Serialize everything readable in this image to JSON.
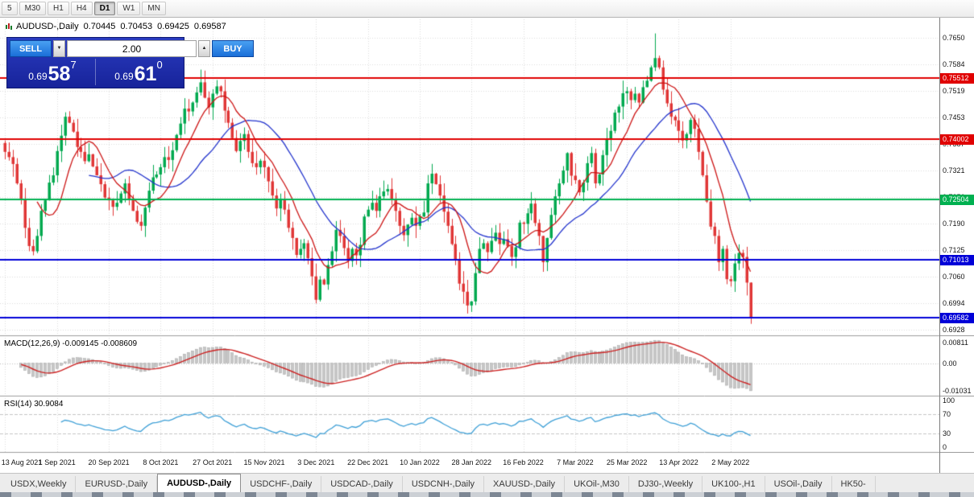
{
  "toolbar": {
    "timeframes": [
      {
        "label": "5",
        "active": false
      },
      {
        "label": "M30",
        "active": false
      },
      {
        "label": "H1",
        "active": false
      },
      {
        "label": "H4",
        "active": false
      },
      {
        "label": "D1",
        "active": true
      },
      {
        "label": "W1",
        "active": false
      },
      {
        "label": "MN",
        "active": false
      }
    ]
  },
  "chart_header": {
    "symbol": "AUDUSD-,Daily",
    "open": "0.70445",
    "high": "0.70453",
    "low": "0.69425",
    "close": "0.69587"
  },
  "trade_panel": {
    "sell_label": "SELL",
    "buy_label": "BUY",
    "volume": "2.00",
    "spin_down": "▼",
    "spin_up": "▲",
    "sell_price_prefix": "0.69",
    "sell_price_big": "58",
    "sell_price_sup": "7",
    "buy_price_prefix": "0.69",
    "buy_price_big": "61",
    "buy_price_sup": "0"
  },
  "indicators": {
    "macd": {
      "label": "MACD(12,26,9) -0.009145 -0.008609",
      "axis_labels": [
        "0.00811",
        "0.00",
        "-0.01031"
      ]
    },
    "rsi": {
      "label": "RSI(14) 30.9084",
      "axis_labels": [
        "100",
        "70",
        "30",
        "0"
      ],
      "axis_values": [
        100,
        70,
        30,
        0
      ]
    }
  },
  "tabs": [
    {
      "label": "USDX,Weekly",
      "active": false
    },
    {
      "label": "EURUSD-,Daily",
      "active": false
    },
    {
      "label": "AUDUSD-,Daily",
      "active": true
    },
    {
      "label": "USDCHF-,Daily",
      "active": false
    },
    {
      "label": "USDCAD-,Daily",
      "active": false
    },
    {
      "label": "USDCNH-,Daily",
      "active": false
    },
    {
      "label": "XAUUSD-,Daily",
      "active": false
    },
    {
      "label": "UKOil-,M30",
      "active": false
    },
    {
      "label": "DJ30-,Weekly",
      "active": false
    },
    {
      "label": "UK100-,H1",
      "active": false
    },
    {
      "label": "USOil-,Daily",
      "active": false
    },
    {
      "label": "HK50-",
      "active": false
    }
  ],
  "chart_data": {
    "type": "candlestick",
    "symbol": "AUDUSD-",
    "timeframe": "Daily",
    "price_range": [
      0.692,
      0.7688
    ],
    "y_axis_ticks": [
      0.765,
      0.7584,
      0.7519,
      0.7453,
      0.7387,
      0.7321,
      0.7256,
      0.719,
      0.7125,
      0.706,
      0.6994,
      0.6928
    ],
    "x_labels": [
      "13 Aug 2021",
      "1 Sep 2021",
      "20 Sep 2021",
      "8 Oct 2021",
      "27 Oct 2021",
      "15 Nov 2021",
      "3 Dec 2021",
      "22 Dec 2021",
      "10 Jan 2022",
      "28 Jan 2022",
      "16 Feb 2022",
      "7 Mar 2022",
      "25 Mar 2022",
      "13 Apr 2022",
      "2 May 2022"
    ],
    "label_step": 13,
    "levels": [
      {
        "price": 0.75512,
        "label": "0.75512",
        "color": "#e00000"
      },
      {
        "price": 0.74002,
        "label": "0.74002",
        "color": "#e00000"
      },
      {
        "price": 0.72504,
        "label": "0.72504",
        "color": "#00b050"
      },
      {
        "price": 0.71013,
        "label": "0.71013",
        "color": "#0000d8"
      },
      {
        "price": 0.69582,
        "label": "0.69582",
        "color": "#0000d8"
      }
    ],
    "closes": [
      0.7368,
      0.7355,
      0.7338,
      0.729,
      0.7252,
      0.718,
      0.7135,
      0.7122,
      0.716,
      0.7222,
      0.7248,
      0.7292,
      0.731,
      0.737,
      0.7408,
      0.7455,
      0.744,
      0.7418,
      0.738,
      0.7368,
      0.7345,
      0.7362,
      0.7332,
      0.731,
      0.7288,
      0.7255,
      0.7248,
      0.7232,
      0.7242,
      0.7265,
      0.729,
      0.725,
      0.7222,
      0.7195,
      0.7185,
      0.723,
      0.7272,
      0.7305,
      0.7312,
      0.733,
      0.7355,
      0.7348,
      0.7372,
      0.741,
      0.7438,
      0.7475,
      0.7468,
      0.749,
      0.7515,
      0.754,
      0.7502,
      0.7478,
      0.7512,
      0.753,
      0.7518,
      0.747,
      0.744,
      0.7402,
      0.737,
      0.7395,
      0.7412,
      0.7368,
      0.734,
      0.733,
      0.7346,
      0.733,
      0.7295,
      0.726,
      0.7228,
      0.7252,
      0.7225,
      0.718,
      0.7155,
      0.7113,
      0.7128,
      0.7142,
      0.7105,
      0.706,
      0.7002,
      0.7052,
      0.704,
      0.7088,
      0.7122,
      0.7175,
      0.716,
      0.713,
      0.7098,
      0.7128,
      0.7112,
      0.7138,
      0.7208,
      0.7225,
      0.7242,
      0.7222,
      0.7258,
      0.727,
      0.7276,
      0.7252,
      0.7222,
      0.7185,
      0.7162,
      0.7188,
      0.7205,
      0.7185,
      0.7208,
      0.7218,
      0.729,
      0.7314,
      0.7288,
      0.726,
      0.722,
      0.7185,
      0.714,
      0.71,
      0.7042,
      0.7022,
      0.6988,
      0.6998,
      0.7068,
      0.7128,
      0.7142,
      0.712,
      0.7148,
      0.7168,
      0.714,
      0.7152,
      0.7135,
      0.7108,
      0.7132,
      0.7193,
      0.719,
      0.7216,
      0.724,
      0.7192,
      0.716,
      0.7095,
      0.7155,
      0.7212,
      0.7258,
      0.729,
      0.7322,
      0.7365,
      0.7309,
      0.7298,
      0.7268,
      0.7292,
      0.734,
      0.7365,
      0.729,
      0.7312,
      0.736,
      0.7398,
      0.742,
      0.7465,
      0.748,
      0.7513,
      0.7518,
      0.7496,
      0.7512,
      0.749,
      0.7528,
      0.7544,
      0.7577,
      0.76,
      0.7577,
      0.7522,
      0.7488,
      0.7455,
      0.7446,
      0.742,
      0.7396,
      0.7412,
      0.7447,
      0.7425,
      0.7368,
      0.731,
      0.7245,
      0.7183,
      0.716,
      0.7095,
      0.7128,
      0.7053,
      0.7048,
      0.7092,
      0.7118,
      0.7108,
      0.70445,
      0.69587
    ],
    "last_candle": {
      "open": 0.70445,
      "high": 0.70453,
      "low": 0.69425,
      "close": 0.69587
    },
    "wick_overrides": {
      "78": {
        "low": 0.6993
      },
      "116": {
        "low": 0.6968
      },
      "163": {
        "high": 0.7661
      },
      "187": {
        "high": 0.70453,
        "low": 0.69425
      }
    },
    "ma_fast_period": 9,
    "ma_slow_period": 22,
    "ma_fast_color": "#cc1414",
    "ma_slow_color": "#2233cc",
    "up_color": "#00a94f",
    "down_color": "#e03636",
    "macd": {
      "fast": 12,
      "slow": 26,
      "signal": 9,
      "current": -0.009145,
      "current_signal": -0.008609,
      "hist_color": "#c6c6c6",
      "signal_color": "#cc2222"
    },
    "rsi": {
      "period": 14,
      "current": 30.9084,
      "line_color": "#3d9fd6"
    }
  }
}
